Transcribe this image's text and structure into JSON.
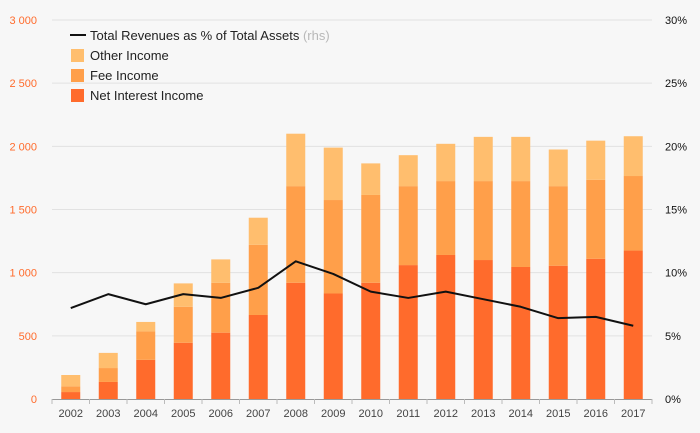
{
  "chart_data": {
    "type": "bar",
    "title": "",
    "xlabel": "",
    "ylabel": "",
    "categories": [
      "2002",
      "2003",
      "2004",
      "2005",
      "2006",
      "2007",
      "2008",
      "2009",
      "2010",
      "2011",
      "2012",
      "2013",
      "2014",
      "2015",
      "2016",
      "2017"
    ],
    "stacked": true,
    "ylim": [
      0,
      3000
    ],
    "y2lim": [
      0,
      30
    ],
    "left_ticks": [
      "0",
      "500",
      "1 000",
      "1 500",
      "2 000",
      "2 500",
      "3 000"
    ],
    "left_tick_values": [
      0,
      500,
      1000,
      1500,
      2000,
      2500,
      3000
    ],
    "right_ticks": [
      "0%",
      "5%",
      "10%",
      "15%",
      "20%",
      "25%",
      "30%"
    ],
    "right_tick_values": [
      0,
      5,
      10,
      15,
      20,
      25,
      30
    ],
    "series": [
      {
        "name": "Net Interest Income",
        "color": "#ff6b2c",
        "values": [
          55,
          135,
          310,
          445,
          525,
          665,
          920,
          835,
          920,
          1060,
          1140,
          1100,
          1045,
          1055,
          1110,
          1175
        ]
      },
      {
        "name": "Fee Income",
        "color": "#ff9f4a",
        "values": [
          45,
          110,
          225,
          285,
          395,
          555,
          765,
          740,
          695,
          625,
          585,
          625,
          680,
          630,
          625,
          590
        ]
      },
      {
        "name": "Other Income",
        "color": "#ffbe6e",
        "values": [
          90,
          120,
          75,
          185,
          185,
          215,
          415,
          415,
          250,
          245,
          295,
          350,
          350,
          290,
          310,
          315
        ]
      }
    ],
    "line_series": {
      "name": "Total Revenues as % of Total Assets",
      "suffix": "(rhs)",
      "axis": "right",
      "color": "#111111",
      "values": [
        7.2,
        8.3,
        7.5,
        8.3,
        8.0,
        8.8,
        10.9,
        9.9,
        8.5,
        8.0,
        8.5,
        7.9,
        7.3,
        6.4,
        6.5,
        5.8
      ]
    },
    "legend": {
      "placement": "top-left",
      "entries": [
        {
          "label": "Total Revenues as % of Total Assets",
          "suffix": "(rhs)",
          "kind": "line",
          "color": "#111111"
        },
        {
          "label": "Other Income",
          "kind": "box",
          "color": "#ffbe6e"
        },
        {
          "label": "Fee Income",
          "kind": "box",
          "color": "#ff9f4a"
        },
        {
          "label": "Net Interest Income",
          "kind": "box",
          "color": "#ff6b2c"
        }
      ]
    },
    "grid": true,
    "left_axis_color": "#ff6b2c"
  }
}
